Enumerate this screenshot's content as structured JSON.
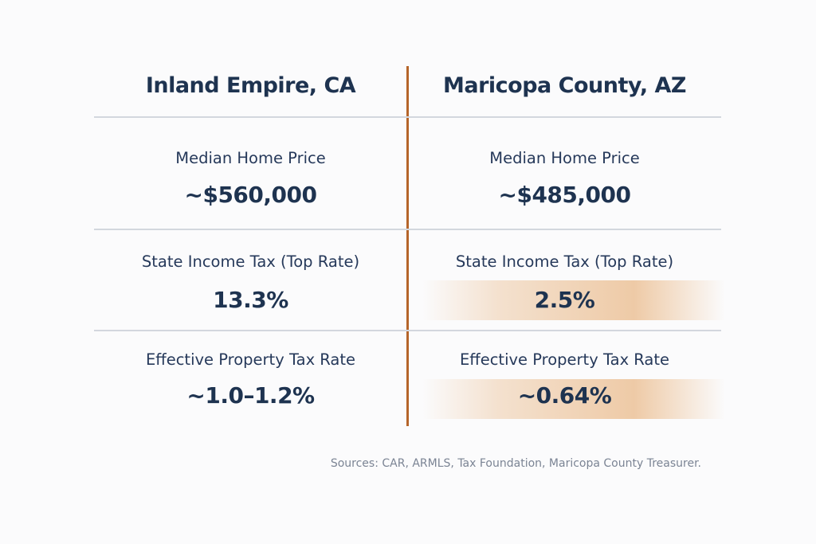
{
  "columns": [
    {
      "title": "Inland Empire, CA",
      "rows": [
        {
          "label": "Median Home Price",
          "value": "~$560,000"
        },
        {
          "label": "State Income Tax (Top Rate)",
          "value": "13.3%"
        },
        {
          "label": "Effective Property Tax Rate",
          "value": "~1.0–1.2%"
        }
      ]
    },
    {
      "title": "Maricopa County, AZ",
      "rows": [
        {
          "label": "Median Home Price",
          "value": "~$485,000"
        },
        {
          "label": "State Income Tax (Top Rate)",
          "value": "2.5%",
          "highlighted": true
        },
        {
          "label": "Effective Property Tax Rate",
          "value": "~0.64%",
          "highlighted": true
        }
      ]
    }
  ],
  "sources": "Sources: CAR, ARMLS, Tax Foundation, Maricopa County Treasurer.",
  "colors": {
    "text": "#1e3350",
    "divider": "#b5652a",
    "highlight": "#ebc197"
  }
}
